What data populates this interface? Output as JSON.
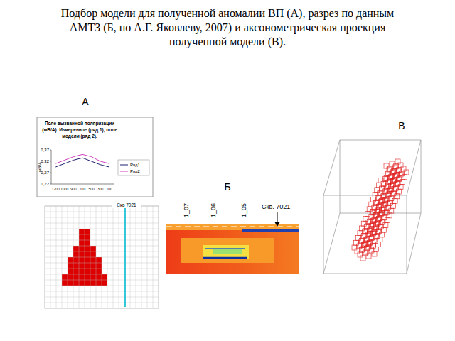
{
  "title": [
    "Подбор модели для полученной аномалии ВП (А), разрез по данным",
    "АМТЗ (Б, по А.Г. Яковлеву, 2007) и аксонометрическая проекция",
    "полученной модели (В)."
  ],
  "panels": {
    "a": "А",
    "b": "Б",
    "c": "В"
  },
  "chart_data": {
    "type": "line",
    "title": [
      "Поле вызванной поляризации",
      "(мВ/А). Измеренное (ряд 1), поле",
      "модели (ряд 2)."
    ],
    "y_label": "мВ/А",
    "categories": [
      "1200",
      "1000",
      "900",
      "700",
      "500",
      "300",
      "100"
    ],
    "series": [
      {
        "name": "Ряд1",
        "color": "#1f1f6e",
        "values": [
          0.295,
          0.31,
          0.325,
          0.335,
          0.32,
          0.305,
          0.295
        ]
      },
      {
        "name": "Ряд2",
        "color": "#d040c0",
        "values": [
          0.31,
          0.325,
          0.34,
          0.35,
          0.34,
          0.32,
          0.31
        ]
      }
    ],
    "ylim": [
      0.22,
      0.37
    ],
    "yticks": [
      {
        "value": 0.22,
        "label": "0,22"
      },
      {
        "value": 0.27,
        "label": "0,27"
      },
      {
        "value": 0.32,
        "label": "0,32"
      },
      {
        "value": 0.37,
        "label": "0,37"
      }
    ],
    "grid": false,
    "legend": "right"
  },
  "model": {
    "well_label": "Скв 7021"
  },
  "section": {
    "profiles": [
      "1_07",
      "1_06",
      "1_05"
    ],
    "well_label": "Скв. 7021"
  }
}
